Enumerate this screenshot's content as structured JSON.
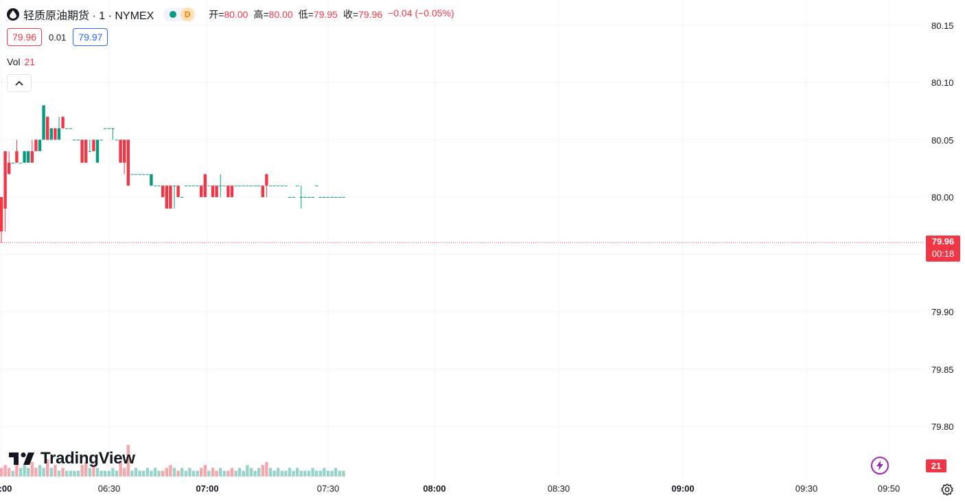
{
  "header": {
    "symbol_title": "轻质原油期货 · 1 · NYMEX",
    "badge_letter": "D",
    "ohlc": [
      {
        "label": "开=",
        "value": "80.00"
      },
      {
        "label": "高=",
        "value": "80.00"
      },
      {
        "label": "低=",
        "value": "79.95"
      },
      {
        "label": "收=",
        "value": "79.96"
      },
      {
        "label": "",
        "value": "−0.04 (−0.05%)"
      }
    ],
    "bid": "79.96",
    "spread": "0.01",
    "ask": "79.97",
    "vol_label": "Vol",
    "vol_value": "21"
  },
  "axis": {
    "price_labels": [
      "80.15",
      "80.10",
      "80.05",
      "80.00",
      "79.90",
      "79.85",
      "79.80"
    ],
    "time_labels": [
      {
        "text": ":00",
        "bold": true
      },
      {
        "text": "06:30",
        "bold": false
      },
      {
        "text": "07:00",
        "bold": true
      },
      {
        "text": "07:30",
        "bold": false
      },
      {
        "text": "08:00",
        "bold": true
      },
      {
        "text": "08:30",
        "bold": false
      },
      {
        "text": "09:00",
        "bold": true
      },
      {
        "text": "09:30",
        "bold": false
      },
      {
        "text": "09:50",
        "bold": false
      }
    ]
  },
  "current_price": {
    "value": "79.96",
    "countdown": "00:18"
  },
  "volume_tag": "21",
  "branding": {
    "logo_text": "TradingView"
  },
  "icons": {
    "symbol": "oil-drop-icon",
    "collapse": "chevron-up-icon",
    "bolt": "lightning-icon",
    "settings": "gear-icon"
  },
  "colors": {
    "up": "#089981",
    "down": "#f23645",
    "vol_up": "#98d3c9",
    "vol_down": "#f5a7ad",
    "grid": "#f0f3fa"
  },
  "chart_data": {
    "type": "candlestick",
    "interval_minutes": 1,
    "x_range": [
      "06:00",
      "09:52"
    ],
    "ylim": [
      79.76,
      80.16
    ],
    "grid": true,
    "bars_desc": "[time, open, high, low, close, volume]",
    "bars": [
      [
        "06:00",
        80.0,
        80.0,
        79.96,
        79.97,
        3
      ],
      [
        "06:01",
        80.04,
        80.04,
        79.97,
        79.99,
        4
      ],
      [
        "06:02",
        80.03,
        80.04,
        80.02,
        80.02,
        3
      ],
      [
        "06:03",
        80.03,
        80.03,
        80.03,
        80.03,
        2
      ],
      [
        "06:04",
        80.04,
        80.05,
        80.03,
        80.03,
        5
      ],
      [
        "06:05",
        80.03,
        80.03,
        80.03,
        80.03,
        3
      ],
      [
        "06:06",
        80.03,
        80.04,
        80.03,
        80.04,
        4
      ],
      [
        "06:07",
        80.03,
        80.04,
        80.03,
        80.04,
        3
      ],
      [
        "06:08",
        80.04,
        80.05,
        80.03,
        80.03,
        5
      ],
      [
        "06:09",
        80.05,
        80.05,
        80.04,
        80.04,
        3
      ],
      [
        "06:10",
        80.04,
        80.05,
        80.04,
        80.05,
        4
      ],
      [
        "06:11",
        80.05,
        80.08,
        80.05,
        80.08,
        3
      ],
      [
        "06:12",
        80.07,
        80.07,
        80.05,
        80.05,
        6
      ],
      [
        "06:13",
        80.05,
        80.06,
        80.05,
        80.06,
        3
      ],
      [
        "06:14",
        80.06,
        80.06,
        80.05,
        80.05,
        4
      ],
      [
        "06:15",
        80.05,
        80.07,
        80.05,
        80.06,
        2
      ],
      [
        "06:16",
        80.07,
        80.07,
        80.06,
        80.06,
        3
      ],
      [
        "06:17",
        80.06,
        80.06,
        80.06,
        80.06,
        2
      ],
      [
        "06:18",
        80.06,
        80.06,
        80.06,
        80.06,
        2
      ],
      [
        "06:19",
        80.05,
        80.05,
        80.05,
        80.05,
        2
      ],
      [
        "06:20",
        80.05,
        80.05,
        80.05,
        80.05,
        2
      ],
      [
        "06:21",
        80.05,
        80.05,
        80.03,
        80.03,
        4
      ],
      [
        "06:22",
        80.05,
        80.05,
        80.03,
        80.03,
        5
      ],
      [
        "06:23",
        80.04,
        80.05,
        80.04,
        80.04,
        3
      ],
      [
        "06:24",
        80.05,
        80.05,
        80.04,
        80.04,
        4
      ],
      [
        "06:25",
        80.03,
        80.05,
        80.03,
        80.05,
        3
      ],
      [
        "06:26",
        80.05,
        80.05,
        80.05,
        80.05,
        2
      ],
      [
        "06:27",
        80.06,
        80.06,
        80.06,
        80.06,
        2
      ],
      [
        "06:28",
        80.06,
        80.06,
        80.06,
        80.06,
        2
      ],
      [
        "06:29",
        80.06,
        80.06,
        80.05,
        80.06,
        3
      ],
      [
        "06:30",
        80.05,
        80.05,
        80.05,
        80.05,
        2
      ],
      [
        "06:31",
        80.05,
        80.05,
        80.03,
        80.03,
        5
      ],
      [
        "06:32",
        80.05,
        80.05,
        80.02,
        80.03,
        3
      ],
      [
        "06:33",
        80.05,
        80.05,
        80.01,
        80.01,
        11
      ],
      [
        "06:34",
        80.02,
        80.02,
        80.02,
        80.02,
        2
      ],
      [
        "06:35",
        80.02,
        80.02,
        80.02,
        80.02,
        3
      ],
      [
        "06:36",
        80.02,
        80.02,
        80.02,
        80.02,
        2
      ],
      [
        "06:37",
        80.02,
        80.02,
        80.02,
        80.02,
        2
      ],
      [
        "06:38",
        80.02,
        80.02,
        80.02,
        80.02,
        3
      ],
      [
        "06:39",
        80.01,
        80.02,
        80.01,
        80.02,
        2
      ],
      [
        "06:40",
        80.01,
        80.01,
        80.01,
        80.01,
        3
      ],
      [
        "06:41",
        80.01,
        80.01,
        80.01,
        80.01,
        2
      ],
      [
        "06:42",
        80.01,
        80.01,
        80.0,
        80.0,
        2
      ],
      [
        "06:43",
        80.01,
        80.01,
        79.99,
        79.99,
        3
      ],
      [
        "06:44",
        80.01,
        80.01,
        79.99,
        79.99,
        4
      ],
      [
        "06:45",
        80.01,
        80.01,
        79.99,
        80.01,
        3
      ],
      [
        "06:46",
        80.01,
        80.01,
        80.0,
        80.0,
        2
      ],
      [
        "06:47",
        80.0,
        80.0,
        80.0,
        80.0,
        3
      ],
      [
        "06:48",
        80.01,
        80.01,
        80.01,
        80.01,
        2
      ],
      [
        "06:49",
        80.01,
        80.01,
        80.01,
        80.01,
        3
      ],
      [
        "06:50",
        80.01,
        80.01,
        80.01,
        80.01,
        2
      ],
      [
        "06:51",
        80.01,
        80.01,
        80.01,
        80.01,
        2
      ],
      [
        "06:52",
        80.01,
        80.01,
        80.0,
        80.0,
        3
      ],
      [
        "06:53",
        80.02,
        80.02,
        80.0,
        80.0,
        4
      ],
      [
        "06:54",
        80.01,
        80.01,
        80.01,
        80.01,
        2
      ],
      [
        "06:55",
        80.01,
        80.01,
        80.0,
        80.0,
        3
      ],
      [
        "06:56",
        80.01,
        80.01,
        80.0,
        80.0,
        2
      ],
      [
        "06:57",
        80.01,
        80.02,
        80.0,
        80.01,
        3
      ],
      [
        "06:58",
        80.01,
        80.01,
        80.01,
        80.01,
        2
      ],
      [
        "06:59",
        80.01,
        80.01,
        80.0,
        80.0,
        2
      ],
      [
        "07:00",
        80.01,
        80.01,
        80.0,
        80.0,
        3
      ],
      [
        "07:01",
        80.01,
        80.01,
        80.01,
        80.01,
        2
      ],
      [
        "07:02",
        80.01,
        80.01,
        80.01,
        80.01,
        3
      ],
      [
        "07:03",
        80.01,
        80.01,
        80.01,
        80.01,
        2
      ],
      [
        "07:04",
        80.01,
        80.01,
        80.01,
        80.01,
        4
      ],
      [
        "07:05",
        80.01,
        80.01,
        80.01,
        80.01,
        3
      ],
      [
        "07:06",
        80.01,
        80.01,
        80.01,
        80.01,
        2
      ],
      [
        "07:07",
        80.01,
        80.01,
        80.01,
        80.01,
        3
      ],
      [
        "07:08",
        80.01,
        80.01,
        80.0,
        80.0,
        4
      ],
      [
        "07:09",
        80.02,
        80.02,
        80.0,
        80.01,
        5
      ],
      [
        "07:10",
        80.01,
        80.01,
        80.01,
        80.01,
        3
      ],
      [
        "07:11",
        80.01,
        80.01,
        80.01,
        80.01,
        2
      ],
      [
        "07:12",
        80.01,
        80.01,
        80.01,
        80.01,
        3
      ],
      [
        "07:13",
        80.01,
        80.01,
        80.01,
        80.01,
        2
      ],
      [
        "07:14",
        80.01,
        80.01,
        80.01,
        80.01,
        2
      ],
      [
        "07:15",
        80.0,
        80.0,
        80.0,
        80.0,
        3
      ],
      [
        "07:16",
        80.0,
        80.0,
        80.0,
        80.0,
        2
      ],
      [
        "07:17",
        80.01,
        80.01,
        80.01,
        80.01,
        3
      ],
      [
        "07:18",
        80.0,
        80.01,
        79.99,
        80.0,
        2
      ],
      [
        "07:19",
        80.0,
        80.0,
        80.0,
        80.0,
        2
      ],
      [
        "07:20",
        80.0,
        80.0,
        80.0,
        80.0,
        2
      ],
      [
        "07:21",
        80.0,
        80.0,
        80.0,
        80.0,
        3
      ],
      [
        "07:22",
        80.01,
        80.01,
        80.01,
        80.01,
        2
      ],
      [
        "07:23",
        80.0,
        80.0,
        80.0,
        80.0,
        2
      ],
      [
        "07:24",
        80.0,
        80.0,
        80.0,
        80.0,
        3
      ],
      [
        "07:25",
        80.0,
        80.0,
        80.0,
        80.0,
        2
      ],
      [
        "07:26",
        80.0,
        80.0,
        80.0,
        80.0,
        2
      ],
      [
        "07:27",
        80.0,
        80.0,
        80.0,
        80.0,
        3
      ],
      [
        "07:28",
        80.0,
        80.0,
        80.0,
        80.0,
        2
      ],
      [
        "07:29",
        80.0,
        80.0,
        80.0,
        80.0,
        2
      ]
    ]
  }
}
